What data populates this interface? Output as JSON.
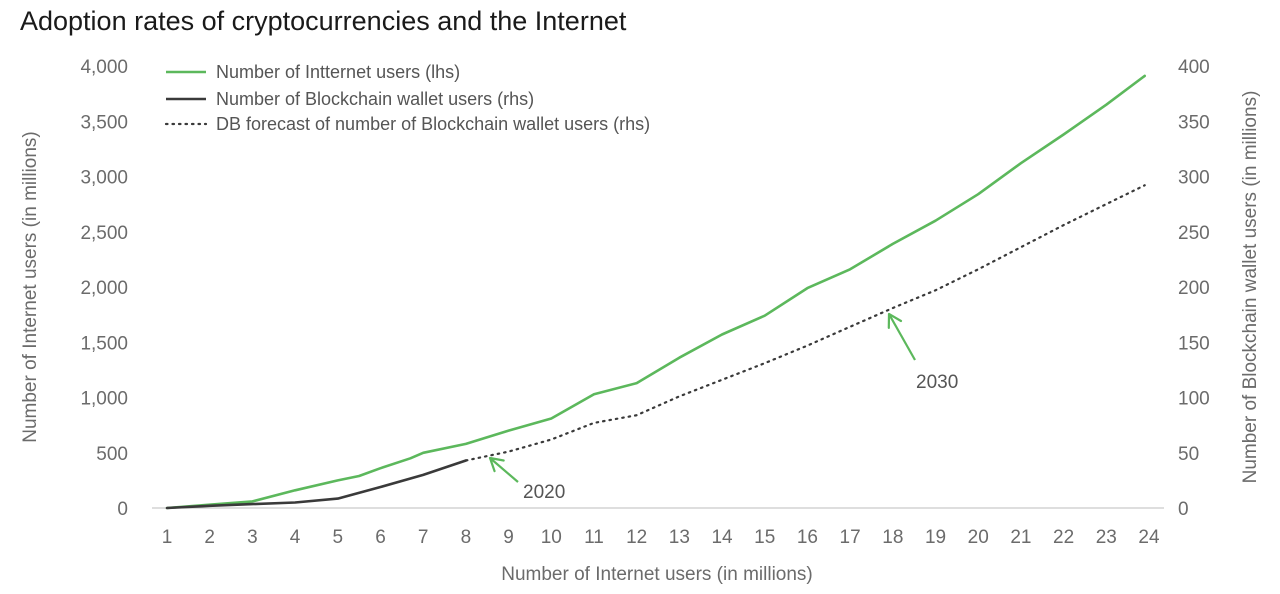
{
  "title": "Adoption rates of cryptocurrencies and the Internet",
  "colors": {
    "internet": "#5cb85c",
    "wallet": "#3a3a3a",
    "forecast": "#3a3a3a",
    "text": "#6b6b6b",
    "annotation": "#5cb85c"
  },
  "chart_data": {
    "type": "line",
    "title": "Adoption rates of cryptocurrencies and the Internet",
    "xlabel": "Number of Internet users (in millions)",
    "ylabel_left": "Number of Internet users (in millions)",
    "ylabel_right": "Number of Blockchain wallet users (in millions)",
    "x_ticks": [
      "1",
      "2",
      "3",
      "4",
      "5",
      "6",
      "7",
      "8",
      "9",
      "10",
      "11",
      "12",
      "13",
      "14",
      "15",
      "16",
      "17",
      "18",
      "19",
      "20",
      "21",
      "22",
      "23",
      "24"
    ],
    "xlim": [
      1,
      24
    ],
    "ylim_left": [
      0,
      4000
    ],
    "ylim_right": [
      0,
      400
    ],
    "y_ticks_left": [
      "0",
      "500",
      "1,000",
      "1,500",
      "2,000",
      "2,500",
      "3,000",
      "3,500",
      "4,000"
    ],
    "y_ticks_right": [
      "0",
      "50",
      "100",
      "150",
      "200",
      "250",
      "300",
      "350",
      "400"
    ],
    "grid": false,
    "legend_position": "top-left",
    "series": [
      {
        "name": "Number of Intternet users (lhs)",
        "axis": "left",
        "style": "solid",
        "points": [
          [
            1,
            0
          ],
          [
            2,
            30
          ],
          [
            3,
            60
          ],
          [
            4,
            160
          ],
          [
            5,
            250
          ],
          [
            5.5,
            290
          ],
          [
            6,
            360
          ],
          [
            6.7,
            450
          ],
          [
            7,
            500
          ],
          [
            8,
            580
          ],
          [
            9,
            700
          ],
          [
            10,
            810
          ],
          [
            11,
            1030
          ],
          [
            12,
            1130
          ],
          [
            13,
            1360
          ],
          [
            14,
            1570
          ],
          [
            15,
            1740
          ],
          [
            16,
            1990
          ],
          [
            17,
            2160
          ],
          [
            18,
            2390
          ],
          [
            19,
            2600
          ],
          [
            20,
            2840
          ],
          [
            21,
            3120
          ],
          [
            22,
            3380
          ],
          [
            23,
            3650
          ],
          [
            23.9,
            3910
          ]
        ]
      },
      {
        "name": "Number of Blockchain wallet users (rhs)",
        "axis": "right",
        "style": "solid",
        "points": [
          [
            1,
            0
          ],
          [
            2,
            2
          ],
          [
            3,
            3.5
          ],
          [
            4,
            5
          ],
          [
            5,
            8.5
          ],
          [
            6,
            19
          ],
          [
            7,
            30
          ],
          [
            8,
            43
          ]
        ]
      },
      {
        "name": "DB forecast of number of Blockchain wallet users (rhs)",
        "axis": "right",
        "style": "dotted",
        "points": [
          [
            8,
            43
          ],
          [
            9,
            51
          ],
          [
            10,
            62
          ],
          [
            11,
            77
          ],
          [
            12,
            84
          ],
          [
            13,
            101
          ],
          [
            14,
            116
          ],
          [
            15,
            131
          ],
          [
            16,
            147
          ],
          [
            17,
            164
          ],
          [
            18,
            181
          ],
          [
            19,
            197
          ],
          [
            20,
            216
          ],
          [
            21,
            236
          ],
          [
            22,
            256
          ],
          [
            23,
            275
          ],
          [
            23.9,
            292
          ]
        ]
      }
    ],
    "annotations": [
      {
        "label": "2020",
        "x": 8.5,
        "y_left": 480
      },
      {
        "label": "2030",
        "x": 17.8,
        "y_left": 1800
      }
    ]
  }
}
